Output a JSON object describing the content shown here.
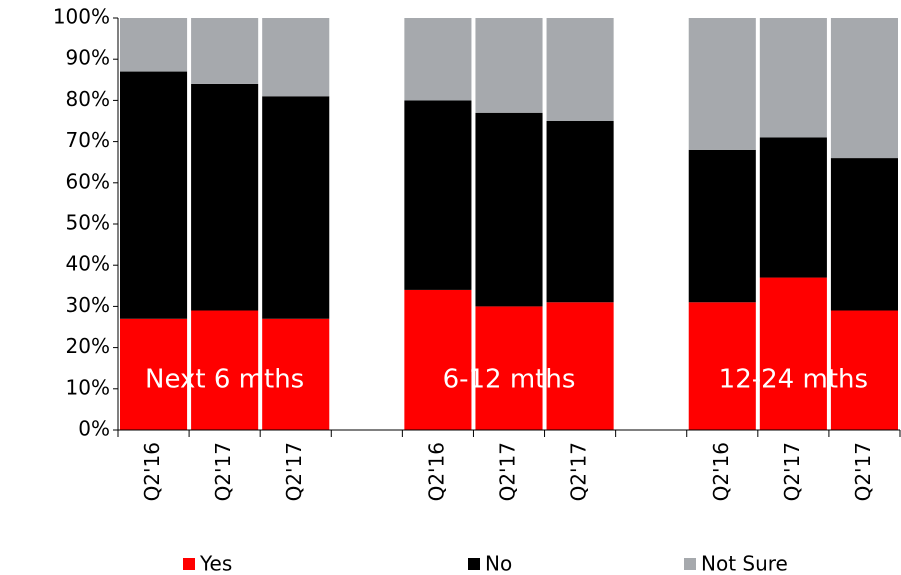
{
  "chart_data": {
    "type": "stacked_bar",
    "categories": [
      "Q2'16",
      "Q2'17",
      "Q2'17",
      null,
      "Q2'16",
      "Q2'17",
      "Q2'17",
      null,
      "Q2'16",
      "Q2'17",
      "Q2'17"
    ],
    "series": [
      {
        "name": "Yes",
        "color": "#ff0000",
        "values": [
          27,
          29,
          27,
          null,
          34,
          30,
          31,
          null,
          31,
          37,
          29
        ]
      },
      {
        "name": "No",
        "color": "#000000",
        "values": [
          60,
          55,
          54,
          null,
          46,
          47,
          44,
          null,
          37,
          34,
          37
        ]
      },
      {
        "name": "Not Sure",
        "color": "#a6a9ad",
        "values": [
          13,
          16,
          19,
          null,
          20,
          23,
          25,
          null,
          32,
          29,
          34
        ]
      }
    ],
    "annotations": [
      "Next 6 mths",
      "6-12 mths",
      "12-24 mths"
    ],
    "ylim": [
      0,
      100
    ],
    "yticks": [
      {
        "value": 0,
        "label": "0%"
      },
      {
        "value": 10,
        "label": "10%"
      },
      {
        "value": 20,
        "label": "20%"
      },
      {
        "value": 30,
        "label": "30%"
      },
      {
        "value": 40,
        "label": "40%"
      },
      {
        "value": 50,
        "label": "50%"
      },
      {
        "value": 60,
        "label": "60%"
      },
      {
        "value": 70,
        "label": "70%"
      },
      {
        "value": 80,
        "label": "80%"
      },
      {
        "value": 90,
        "label": "90%"
      },
      {
        "value": 100,
        "label": "100%"
      }
    ],
    "grid": false
  }
}
